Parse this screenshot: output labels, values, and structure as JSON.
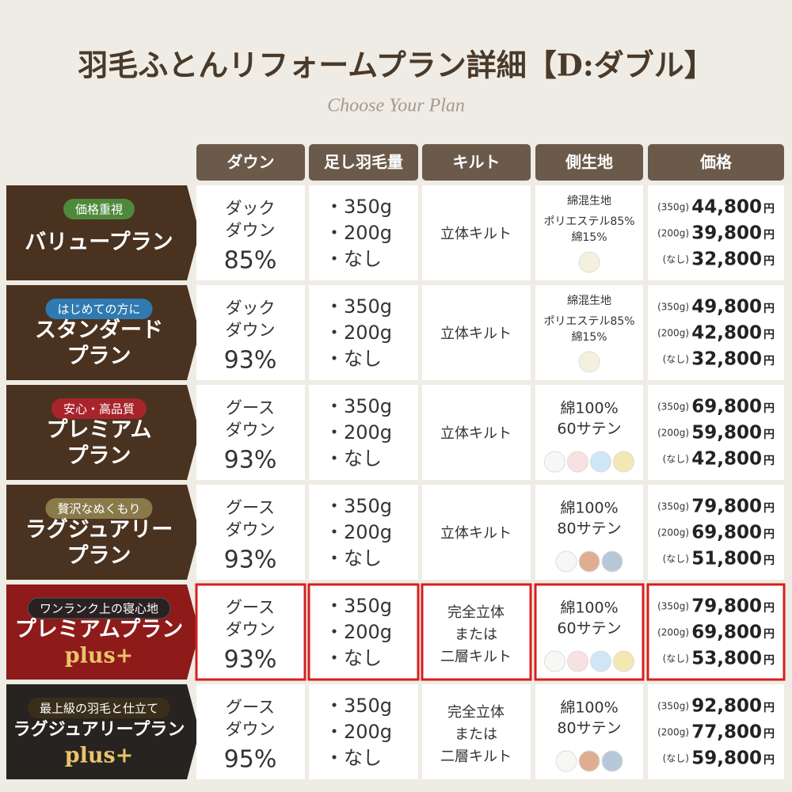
{
  "header": {
    "title": "羽毛ふとんリフォームプラン詳細【D:ダブル】",
    "subtitle": "Choose Your Plan"
  },
  "table": {
    "columns": [
      "ダウン",
      "足し羽毛量",
      "キルト",
      "側生地",
      "価格"
    ],
    "rows": [
      {
        "tag": "価格重視",
        "tag_color": "#4f8a3c",
        "label_color": "#4a3220",
        "highlight": false,
        "name": [
          {
            "text": "バリュープラン",
            "color": "#ffffff"
          }
        ],
        "down": [
          "ダック",
          "ダウン",
          "85%"
        ],
        "amounts": [
          "・350g",
          "・200g",
          "・なし"
        ],
        "quilt": [
          "立体キルト"
        ],
        "fabric": [
          "綿混生地",
          "ポリエステル85%",
          "綿15%"
        ],
        "swatches": [
          "#f3f0e0"
        ],
        "prices": [
          {
            "label": "(350g)",
            "amount": "44,800",
            "unit": "円"
          },
          {
            "label": "(200g)",
            "amount": "39,800",
            "unit": "円"
          },
          {
            "label": "(なし)",
            "amount": "32,800",
            "unit": "円"
          }
        ]
      },
      {
        "tag": "はじめての方に",
        "tag_color": "#2f7ab0",
        "label_color": "#4a3220",
        "highlight": false,
        "name": [
          {
            "text": "スタンダード",
            "color": "#ffffff"
          },
          {
            "text": "プラン",
            "color": "#ffffff"
          }
        ],
        "down": [
          "ダック",
          "ダウン",
          "93%"
        ],
        "amounts": [
          "・350g",
          "・200g",
          "・なし"
        ],
        "quilt": [
          "立体キルト"
        ],
        "fabric": [
          "綿混生地",
          "ポリエステル85%",
          "綿15%"
        ],
        "swatches": [
          "#f3f0e0"
        ],
        "prices": [
          {
            "label": "(350g)",
            "amount": "49,800",
            "unit": "円"
          },
          {
            "label": "(200g)",
            "amount": "42,800",
            "unit": "円"
          },
          {
            "label": "(なし)",
            "amount": "32,800",
            "unit": "円"
          }
        ]
      },
      {
        "tag": "安心・高品質",
        "tag_color": "#a8242b",
        "label_color": "#4a3220",
        "highlight": false,
        "name": [
          {
            "text": "プレミアム",
            "color": "#ffffff"
          },
          {
            "text": "プラン",
            "color": "#ffffff"
          }
        ],
        "down": [
          "グース",
          "ダウン",
          "93%"
        ],
        "amounts": [
          "・350g",
          "・200g",
          "・なし"
        ],
        "quilt": [
          "立体キルト"
        ],
        "fabric": [
          "綿100%",
          "60サテン"
        ],
        "swatches": [
          "#f7f7f5",
          "#f7e1e1",
          "#cfe6f7",
          "#f3e8b2"
        ],
        "prices": [
          {
            "label": "(350g)",
            "amount": "69,800",
            "unit": "円"
          },
          {
            "label": "(200g)",
            "amount": "59,800",
            "unit": "円"
          },
          {
            "label": "(なし)",
            "amount": "42,800",
            "unit": "円"
          }
        ]
      },
      {
        "tag": "贅沢なぬくもり",
        "tag_color": "#8a7a4a",
        "label_color": "#4a3220",
        "highlight": false,
        "name": [
          {
            "text": "ラグジュアリー",
            "color": "#ffffff"
          },
          {
            "text": "プラン",
            "color": "#ffffff"
          }
        ],
        "down": [
          "グース",
          "ダウン",
          "93%"
        ],
        "amounts": [
          "・350g",
          "・200g",
          "・なし"
        ],
        "quilt": [
          "立体キルト"
        ],
        "fabric": [
          "綿100%",
          "80サテン"
        ],
        "swatches": [
          "#f7f7f5",
          "#dfae92",
          "#b6c8d8"
        ],
        "prices": [
          {
            "label": "(350g)",
            "amount": "79,800",
            "unit": "円"
          },
          {
            "label": "(200g)",
            "amount": "69,800",
            "unit": "円"
          },
          {
            "label": "(なし)",
            "amount": "51,800",
            "unit": "円"
          }
        ]
      },
      {
        "tag": "ワンランク上の寝心地",
        "tag_color": "#2a2222",
        "label_color": "#8e1a1a",
        "highlight": true,
        "name": [
          {
            "text": "プレミアムプラン",
            "color": "#ffffff"
          },
          {
            "text": "plus+",
            "color": "#e8c46a"
          }
        ],
        "down": [
          "グース",
          "ダウン",
          "93%"
        ],
        "amounts": [
          "・350g",
          "・200g",
          "・なし"
        ],
        "quilt": [
          "完全立体",
          "または",
          "二層キルト"
        ],
        "fabric": [
          "綿100%",
          "60サテン"
        ],
        "swatches": [
          "#f7f7f5",
          "#f7e1e1",
          "#cfe6f7",
          "#f3e8b2"
        ],
        "prices": [
          {
            "label": "(350g)",
            "amount": "79,800",
            "unit": "円"
          },
          {
            "label": "(200g)",
            "amount": "69,800",
            "unit": "円"
          },
          {
            "label": "(なし)",
            "amount": "53,800",
            "unit": "円"
          }
        ]
      },
      {
        "tag": "最上級の羽毛と仕立て",
        "tag_color": "#3a2e1a",
        "label_color": "#262320",
        "highlight": false,
        "name": [
          {
            "text": "ラグジュアリープラン",
            "color": "#ffffff"
          },
          {
            "text": "plus+",
            "color": "#e8c46a"
          }
        ],
        "down": [
          "グース",
          "ダウン",
          "95%"
        ],
        "amounts": [
          "・350g",
          "・200g",
          "・なし"
        ],
        "quilt": [
          "完全立体",
          "または",
          "二層キルト"
        ],
        "fabric": [
          "綿100%",
          "80サテン"
        ],
        "swatches": [
          "#f7f7f5",
          "#dfae92",
          "#b6c8d8"
        ],
        "prices": [
          {
            "label": "(350g)",
            "amount": "92,800",
            "unit": "円"
          },
          {
            "label": "(200g)",
            "amount": "77,800",
            "unit": "円"
          },
          {
            "label": "(なし)",
            "amount": "59,800",
            "unit": "円"
          }
        ]
      }
    ]
  }
}
